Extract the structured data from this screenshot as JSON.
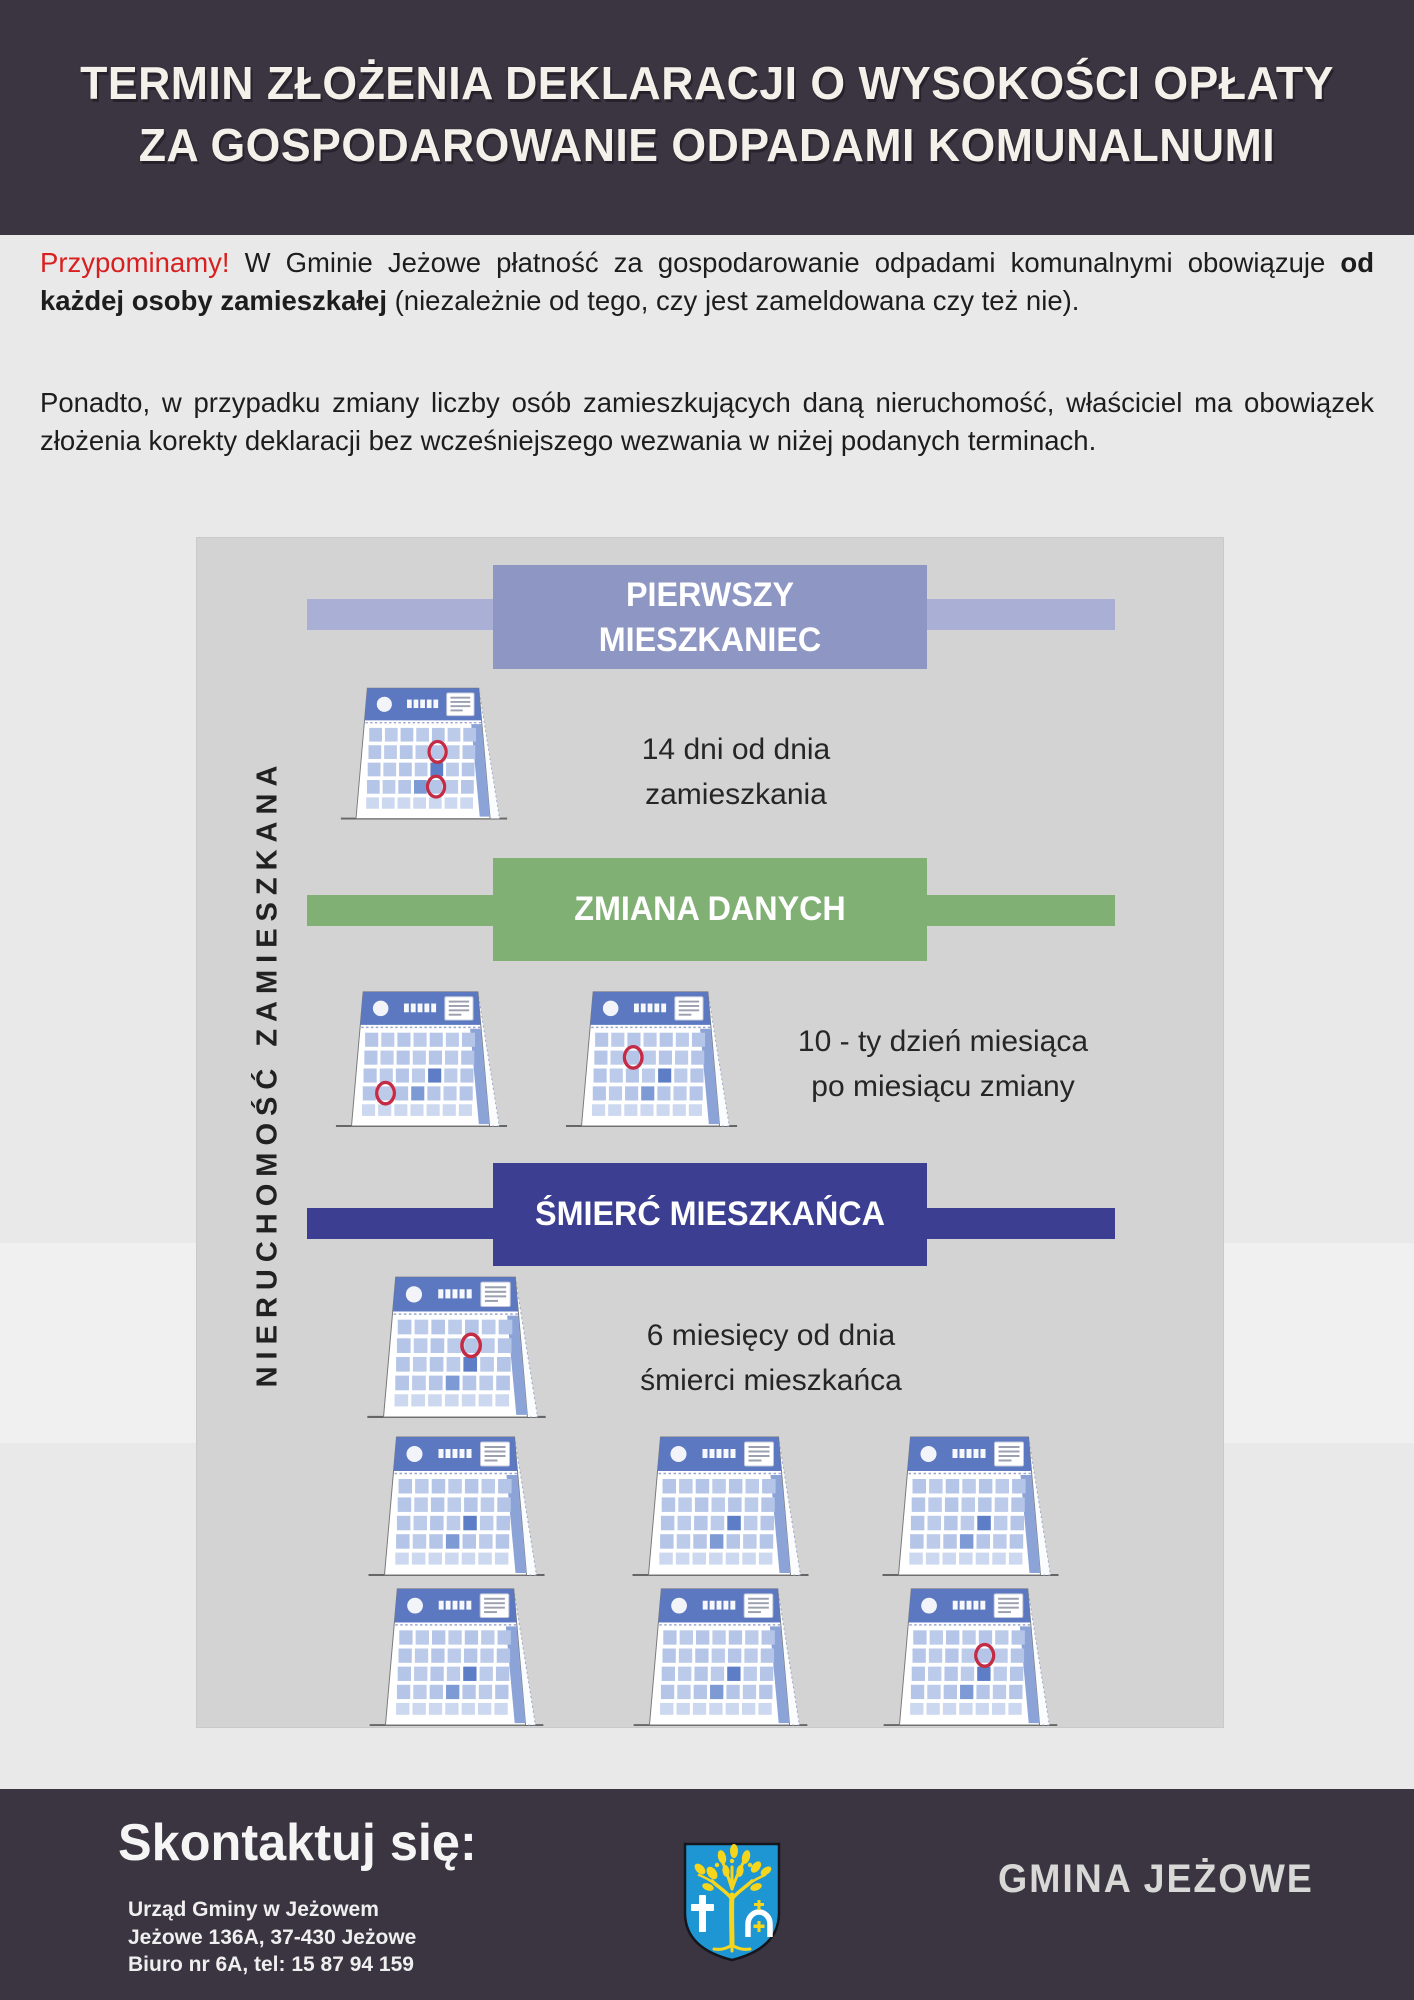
{
  "header": {
    "title_line1": "TERMIN ZŁOŻENIA DEKLARACJI O WYSOKOŚCI OPŁATY",
    "title_line2": "ZA GOSPODAROWANIE ODPADAMI KOMUNALNUMI"
  },
  "intro": {
    "p1_highlight": "Przypominamy!",
    "p1_part1": " W Gminie Jeżowe płatność za gospodarowanie odpadami komunalnymi obowiązuje ",
    "p1_bold": "od każdej osoby zamieszkałej",
    "p1_part2": " (niezależnie od tego, czy jest zameldowana czy też nie).",
    "p2": "Ponadto, w przypadku zmiany liczby osób zamieszkujących daną nieruchomość, właściciel ma obowiązek złożenia korekty deklaracji bez wcześniejszego wezwania w niżej podanych terminach."
  },
  "infographic": {
    "side_label": "NIERUCHOMOŚĆ ZAMIESZKANA",
    "sections": [
      {
        "title": "PIERWSZY MIESZKANIEC",
        "note_line1": "14 dni od dnia",
        "note_line2": "zamieszkania",
        "color": "#8e96c4",
        "wing_color": "#aab0d5"
      },
      {
        "title": "ZMIANA DANYCH",
        "note_line1": "10 - ty dzień miesiąca",
        "note_line2": "po miesiącu zmiany",
        "color": "#80b073",
        "wing_color": "#80b073"
      },
      {
        "title": "ŚMIERĆ MIESZKAŃCA",
        "note_line1": "6 miesięcy od dnia",
        "note_line2": "śmierci mieszkańca",
        "color": "#3b3e91",
        "wing_color": "#3b3e91"
      }
    ]
  },
  "footer": {
    "heading": "Skontaktuj się:",
    "address_line1": "Urząd Gminy w Jeżowem",
    "address_line2": "Jeżowe 136A, 37-430 Jeżowe",
    "address_line3": "Biuro nr 6A, tel: 15 87 94 159",
    "brand": "GMINA JEŻOWE"
  },
  "colors": {
    "dark_band": "#3a3541",
    "accent_red": "#d92020",
    "panel_gray": "#d3d3d3",
    "banner_first": "#8e96c4",
    "banner_first_wing": "#aab0d5",
    "banner_change": "#80b073",
    "banner_death": "#3b3e91",
    "calendar_header_blue": "#5b78c0",
    "calendar_cell_blue": "#b8c8e9",
    "mark_red": "#c42b45",
    "shield_blue": "#1e96d4",
    "shield_yellow": "#f5d61d"
  }
}
